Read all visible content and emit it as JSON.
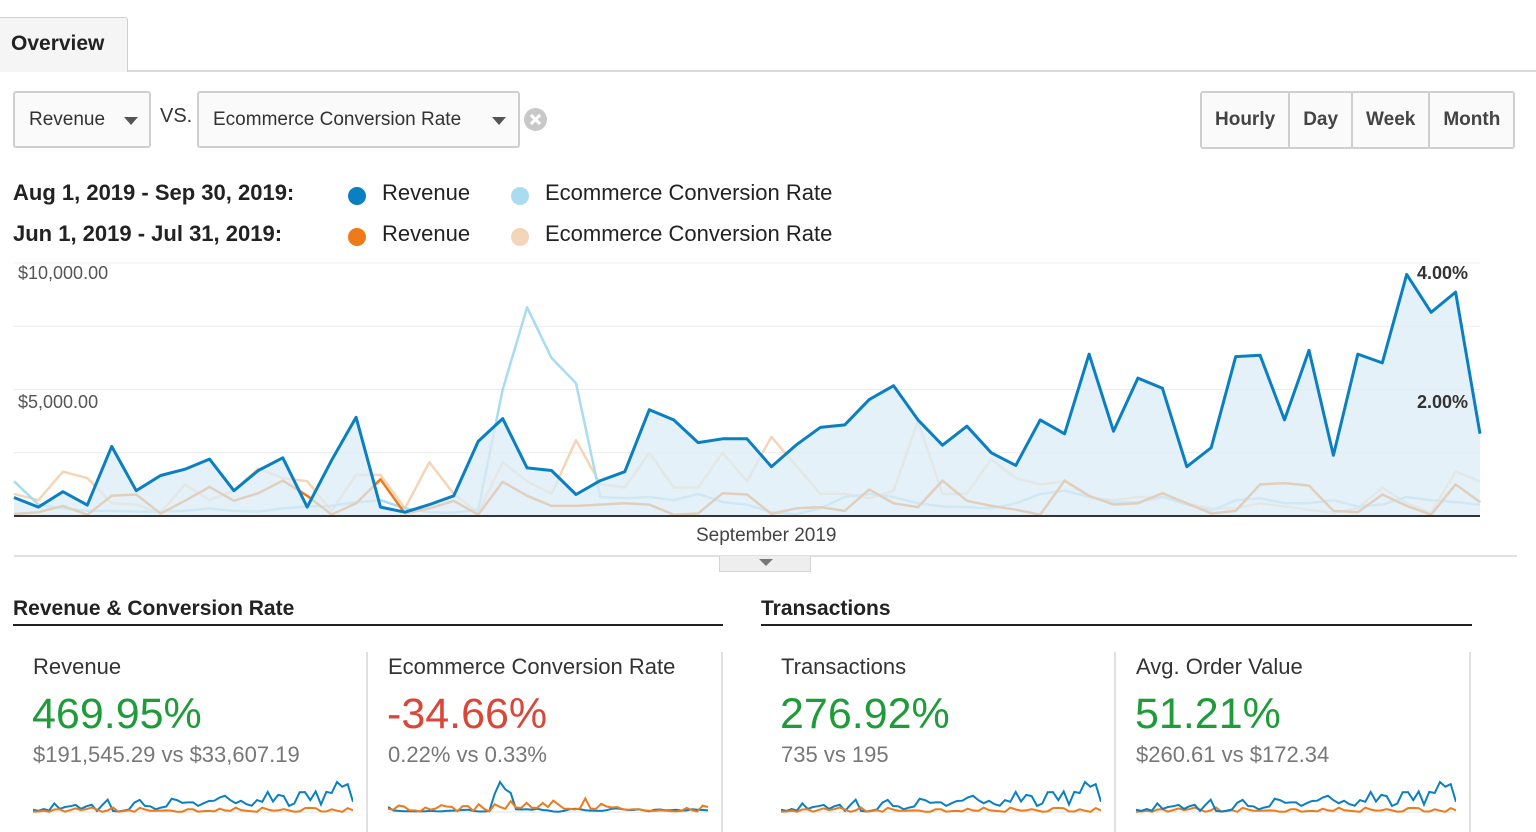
{
  "tabs": [
    {
      "label": "Overview"
    }
  ],
  "controls": {
    "primary_metric": "Revenue",
    "vs_label": "VS.",
    "secondary_metric": "Ecommerce Conversion Rate",
    "granularity": [
      {
        "label": "Hourly",
        "active": false
      },
      {
        "label": "Day",
        "active": true
      },
      {
        "label": "Week",
        "active": false
      },
      {
        "label": "Month",
        "active": false
      }
    ]
  },
  "legend": [
    {
      "range": "Aug 1, 2019 - Sep 30, 2019:",
      "items": [
        {
          "label": "Revenue",
          "color": "#0a7fc2"
        },
        {
          "label": "Ecommerce Conversion Rate",
          "color": "#a8dcf0"
        }
      ]
    },
    {
      "range": "Jun 1, 2019 - Jul 31, 2019:",
      "items": [
        {
          "label": "Revenue",
          "color": "#ee7a1a"
        },
        {
          "label": "Ecommerce Conversion Rate",
          "color": "#f5d5b8"
        }
      ]
    }
  ],
  "chart_data": {
    "type": "line",
    "x_range": [
      "Aug 1, 2019",
      "Sep 30, 2019"
    ],
    "x_label": "September 2019",
    "y_left_ticks": [
      "$10,000.00",
      "$5,000.00"
    ],
    "y_left_range": [
      0,
      10000
    ],
    "y_right_ticks": [
      "4.00%",
      "2.00%"
    ],
    "y_right_range": [
      0,
      4
    ],
    "grid": true,
    "series": [
      {
        "name": "Revenue (Aug 1, 2019 - Sep 30, 2019)",
        "axis": "left",
        "color": "#0a7fc2",
        "area": true,
        "values": [
          730,
          350,
          960,
          430,
          2750,
          1000,
          1600,
          1850,
          2250,
          1000,
          1800,
          2300,
          350,
          2200,
          3900,
          350,
          150,
          450,
          800,
          2950,
          3850,
          1900,
          1800,
          850,
          1400,
          1750,
          4200,
          3800,
          2900,
          3050,
          3050,
          1950,
          2800,
          3500,
          3600,
          4600,
          5150,
          3800,
          2800,
          3550,
          2500,
          2000,
          3800,
          3250,
          6400,
          3350,
          5450,
          5050,
          1950,
          2700,
          6300,
          6350,
          3800,
          6550,
          2400,
          6400,
          6050,
          9550,
          8050,
          8850,
          3250
        ]
      },
      {
        "name": "Ecommerce Conversion Rate (Aug 1, 2019 - Sep 30, 2019)",
        "axis": "right",
        "color": "#a8dcf0",
        "values": [
          0.55,
          0.18,
          0.12,
          0.08,
          0.08,
          0.07,
          0.07,
          0.08,
          0.12,
          0.08,
          0.07,
          0.12,
          0.15,
          0.16,
          0.22,
          0.25,
          0.12,
          0.06,
          0.05,
          0.1,
          2.0,
          3.3,
          2.5,
          2.1,
          0.3,
          0.28,
          0.3,
          0.25,
          0.35,
          0.22,
          0.18,
          0.06,
          0.03,
          0.12,
          0.3,
          0.35,
          0.3,
          0.2,
          0.15,
          0.14,
          0.12,
          0.2,
          0.35,
          0.4,
          0.3,
          0.22,
          0.22,
          0.3,
          0.18,
          0.08,
          0.25,
          0.28,
          0.2,
          0.2,
          0.25,
          0.15,
          0.18,
          0.3,
          0.25,
          0.22,
          0.18
        ]
      },
      {
        "name": "Revenue (Jun 1, 2019 - Jul 31, 2019)",
        "axis": "left",
        "color": "#ee7a1a",
        "values": [
          80,
          150,
          400,
          50,
          800,
          850,
          100,
          600,
          1150,
          600,
          900,
          1400,
          800,
          60,
          500,
          1450,
          100,
          300,
          600,
          50,
          1350,
          800,
          400,
          400,
          450,
          500,
          450,
          50,
          100,
          900,
          850,
          80,
          300,
          350,
          200,
          1050,
          500,
          350,
          1400,
          600,
          400,
          250,
          50,
          1400,
          800,
          450,
          500,
          900,
          500,
          100,
          200,
          1250,
          1300,
          1200,
          200,
          150,
          850,
          400,
          50,
          1250,
          550
        ]
      },
      {
        "name": "Ecommerce Conversion Rate (Jun 1, 2019 - Jul 31, 2019)",
        "axis": "right",
        "color": "#f5d5b8",
        "values": [
          0.35,
          0.25,
          0.7,
          0.6,
          0.2,
          0.18,
          0.05,
          0.5,
          0.25,
          0.4,
          0.75,
          0.6,
          0.55,
          0.08,
          0.65,
          0.65,
          0.12,
          0.85,
          0.35,
          0.05,
          0.85,
          0.55,
          0.35,
          1.2,
          0.5,
          0.45,
          1.0,
          0.45,
          0.45,
          1.0,
          0.55,
          1.25,
          0.8,
          0.35,
          0.35,
          0.28,
          0.4,
          1.5,
          0.35,
          0.35,
          0.9,
          0.6,
          0.5,
          0.55,
          0.3,
          0.25,
          0.3,
          0.3,
          0.2,
          0.12,
          0.12,
          0.2,
          0.15,
          0.1,
          0.05,
          0.12,
          0.45,
          0.2,
          0.05,
          0.7,
          0.55
        ]
      }
    ]
  },
  "scorecards": {
    "groups": [
      {
        "title": "Revenue & Conversion Rate"
      },
      {
        "title": "Transactions"
      }
    ],
    "cards": [
      {
        "name": "Revenue",
        "pct": "469.95%",
        "pct_color": "#1f9b3a",
        "comparison": "$191,545.29 vs $33,607.19"
      },
      {
        "name": "Ecommerce Conversion Rate",
        "pct": "-34.66%",
        "pct_color": "#d9473a",
        "comparison": "0.22% vs 0.33%"
      },
      {
        "name": "Transactions",
        "pct": "276.92%",
        "pct_color": "#1f9b3a",
        "comparison": "735 vs 195"
      },
      {
        "name": "Avg. Order Value",
        "pct": "51.21%",
        "pct_color": "#1f9b3a",
        "comparison": "$260.61 vs $172.34"
      }
    ]
  }
}
